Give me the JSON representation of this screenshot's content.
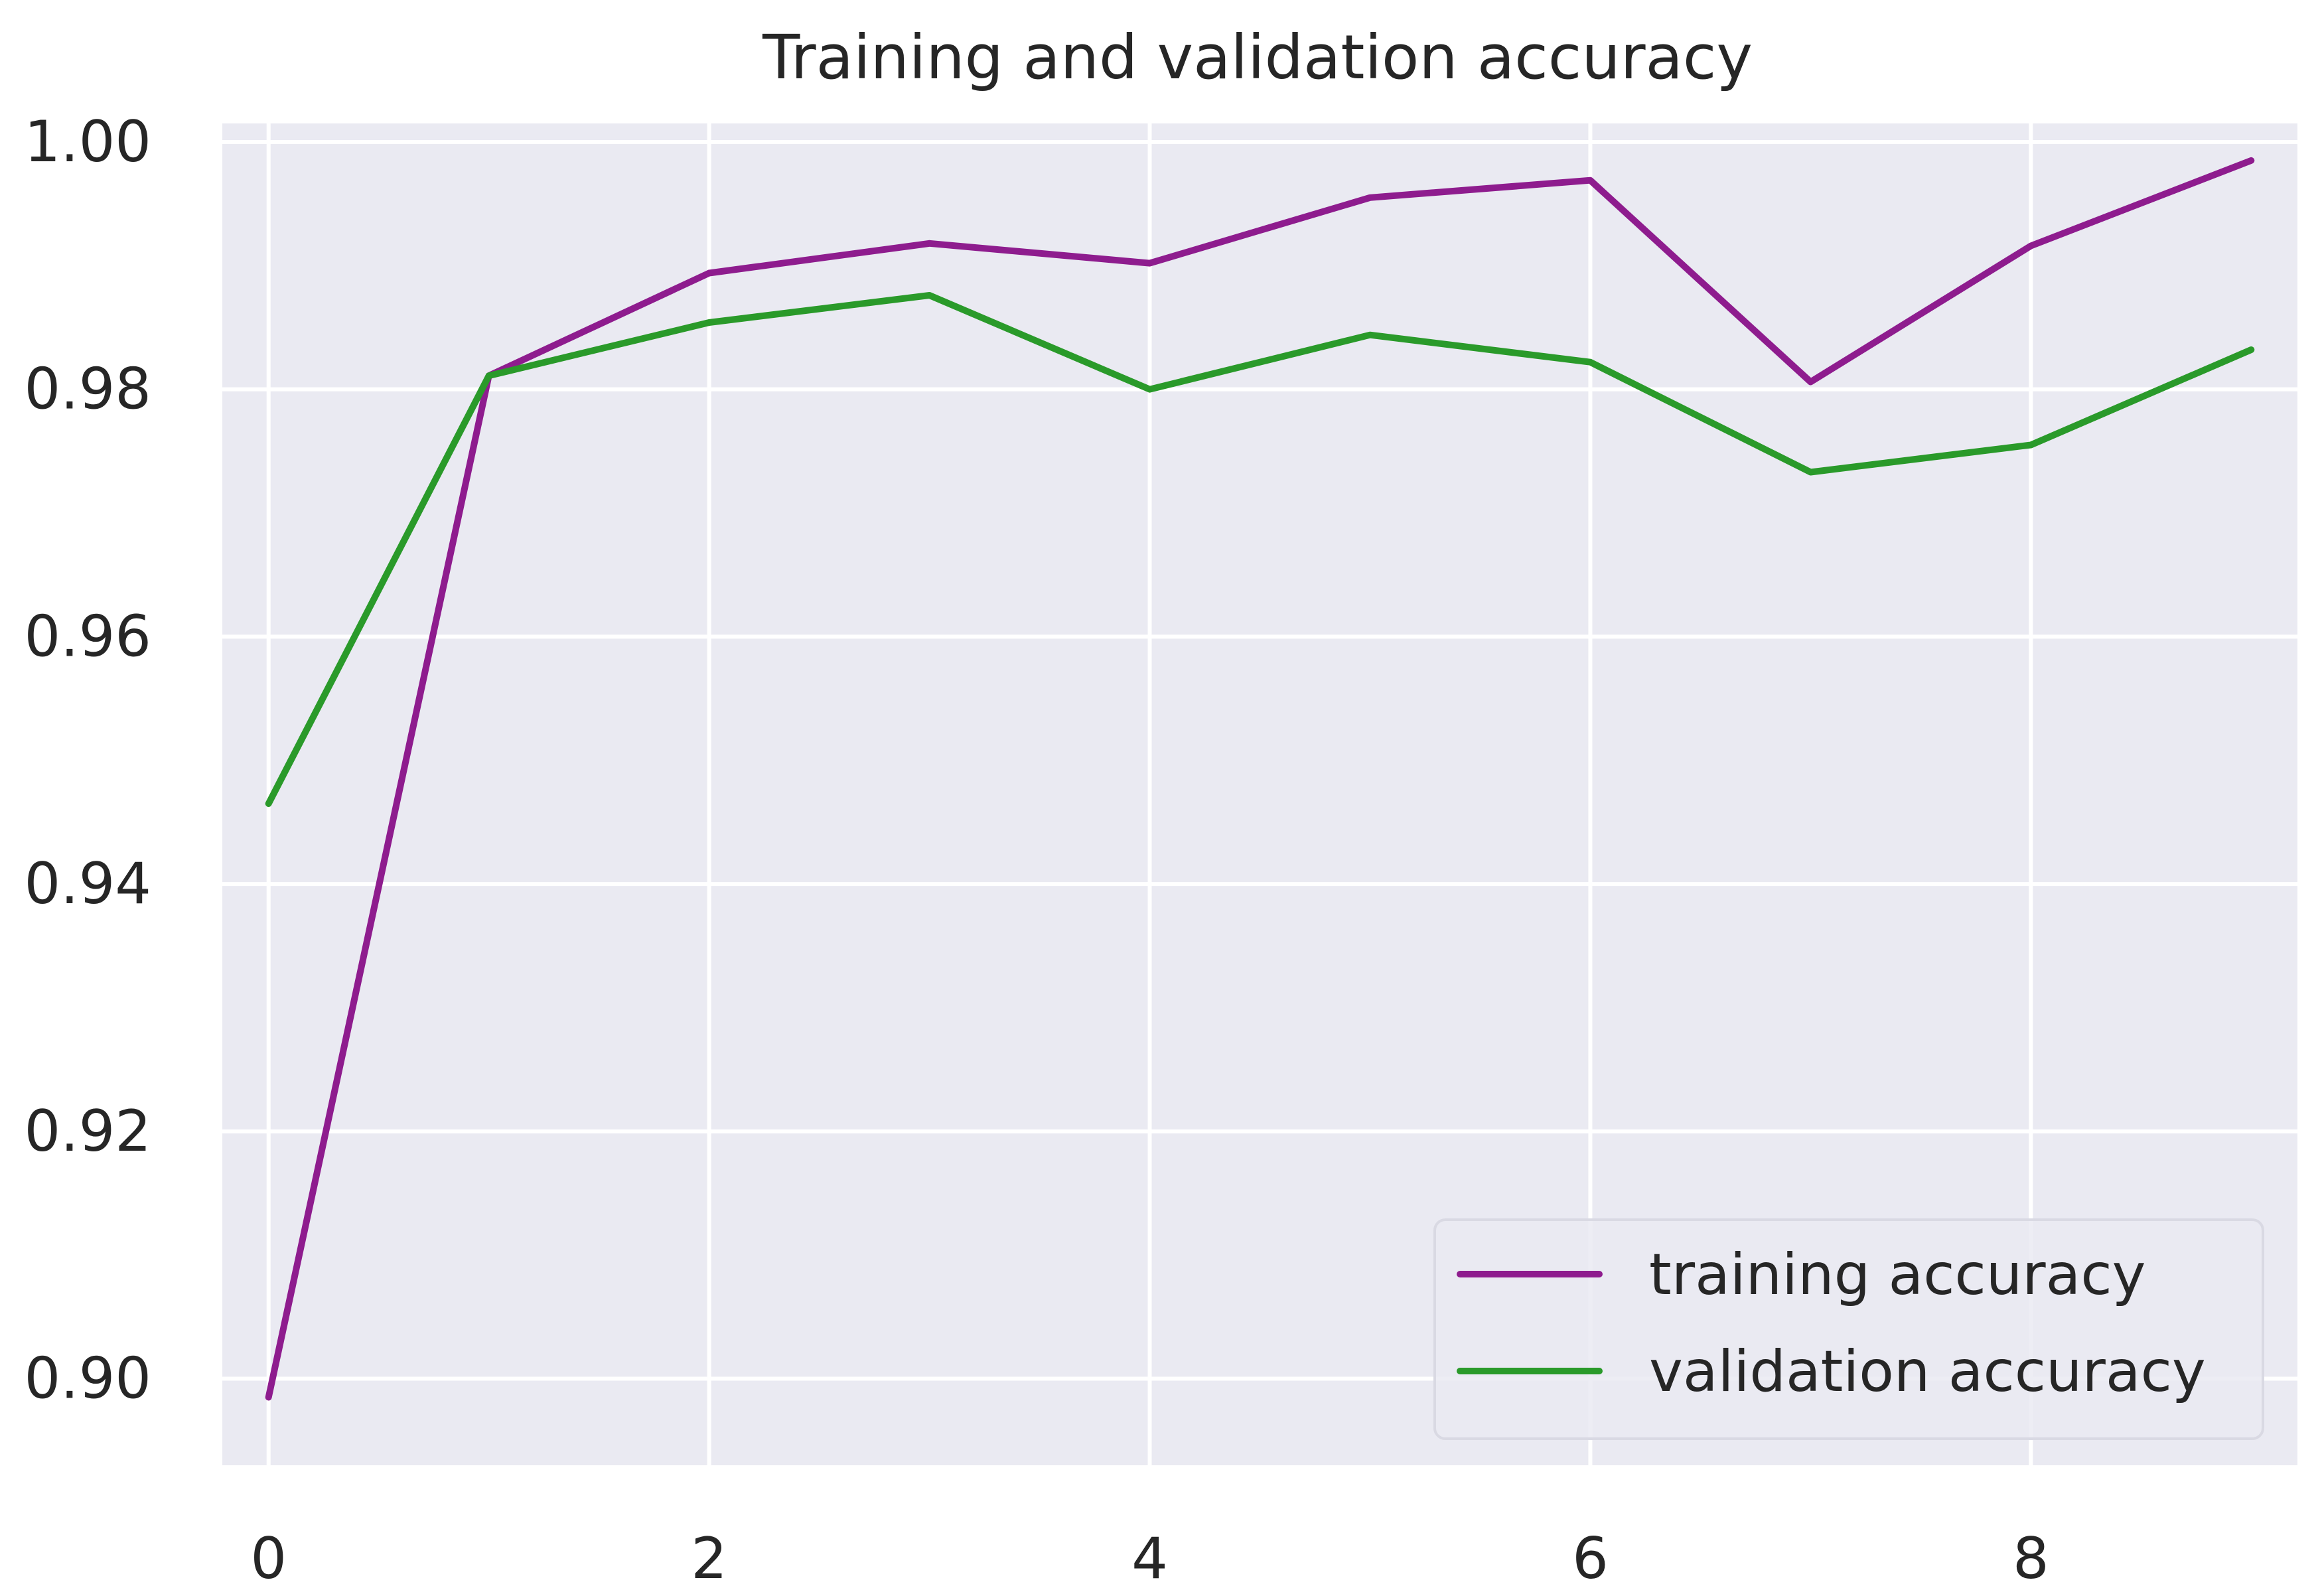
{
  "chart_data": {
    "type": "line",
    "title": "Training and validation accuracy",
    "xlabel": "",
    "ylabel": "",
    "xlim": [
      -0.21,
      9.21
    ],
    "ylim": [
      0.893,
      1.0015
    ],
    "x_ticks": [
      0,
      2,
      4,
      6,
      8
    ],
    "x_tick_labels": [
      "0",
      "2",
      "4",
      "6",
      "8"
    ],
    "y_ticks": [
      0.9,
      0.92,
      0.94,
      0.96,
      0.98,
      1.0
    ],
    "y_tick_labels": [
      "0.90",
      "0.92",
      "0.94",
      "0.96",
      "0.98",
      "1.00"
    ],
    "grid": true,
    "legend_position": "lower-right",
    "x": [
      0,
      1,
      2,
      3,
      4,
      5,
      6,
      7,
      8,
      9
    ],
    "series": [
      {
        "name": "training accuracy",
        "color": "#8E1C8E",
        "values": [
          0.8985,
          0.9811,
          0.9894,
          0.9918,
          0.9902,
          0.9955,
          0.9969,
          0.9806,
          0.9916,
          0.9985
        ]
      },
      {
        "name": "validation accuracy",
        "color": "#2A9A2A",
        "values": [
          0.9465,
          0.9811,
          0.9854,
          0.9876,
          0.98,
          0.9844,
          0.9822,
          0.9733,
          0.9755,
          0.9832
        ]
      }
    ],
    "colors": {
      "plot_background": "#EAEAF2",
      "grid": "#FFFFFF",
      "text": "#262626"
    }
  }
}
